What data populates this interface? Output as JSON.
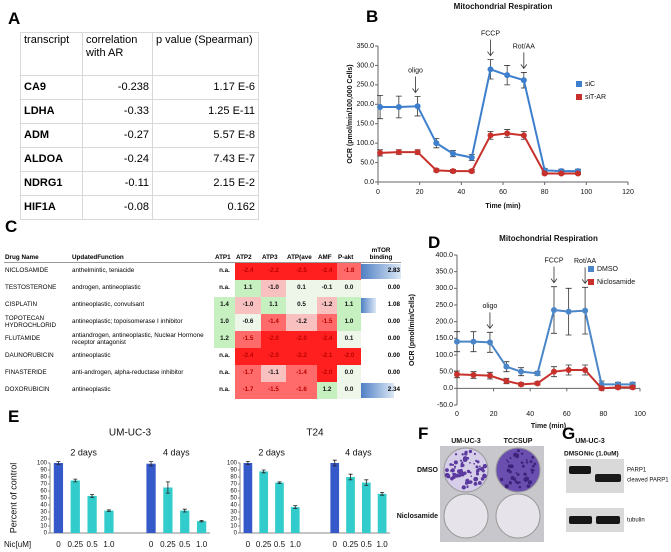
{
  "panel_labels": [
    "A",
    "B",
    "C",
    "D",
    "E",
    "F",
    "G"
  ],
  "table_a": {
    "header": [
      "transcript",
      "correlation with AR",
      "p value (Spearman)"
    ],
    "rows": [
      [
        "CA9",
        -0.238,
        "1.17 E-6"
      ],
      [
        "LDHA",
        -0.33,
        "1.25 E-11"
      ],
      [
        "ADM",
        -0.27,
        "5.57 E-8"
      ],
      [
        "ALDOA",
        -0.24,
        "7.43 E-7"
      ],
      [
        "NDRG1",
        -0.11,
        "2.15 E-2"
      ],
      [
        "HIF1A",
        -0.08,
        0.162
      ]
    ]
  },
  "table_c": {
    "header": [
      "Drug Name",
      "UpdatedFunction",
      "ATP1",
      "ATP2",
      "ATP3",
      "ATP(ave",
      "AMF",
      "P-akt",
      "mTOR binding"
    ],
    "rows": [
      [
        "NICLOSAMIDE",
        "anthelmintic, teniacide",
        "n.a.",
        "-2.4",
        "-2.2",
        "-2.5",
        "-2.4",
        "-1.8",
        "2.83"
      ],
      [
        "TESTOSTERONE",
        "androgen, antineoplastic",
        "n.a.",
        "1.1",
        "-1.0",
        "0.1",
        "-0.1",
        "0.0",
        "0.00"
      ],
      [
        "CISPLATIN",
        "antineoplastic, convulsant",
        "1.4",
        "-1.0",
        "1.1",
        "0.5",
        "-1.2",
        "1.1",
        "1.08"
      ],
      [
        "TOPOTECAN HYDROCHLORID",
        "antineoplastic; topoisomerase I inhibitor",
        "1.0",
        "-0.6",
        "-1.4",
        "-1.2",
        "-1.5",
        "1.0",
        "0.00"
      ],
      [
        "FLUTAMIDE",
        "antiandrogen, antineoplastic, Nuclear Hormone receptor antagonist",
        "1.2",
        "-1.5",
        "-2.0",
        "-2.0",
        "-2.4",
        "0.1",
        "0.00"
      ],
      [
        "DAUNORUBICIN",
        "antineoplastic",
        "n.a.",
        "-2.4",
        "-2.0",
        "-2.2",
        "-2.1",
        "-2.0",
        "0.00"
      ],
      [
        "FINASTERIDE",
        "anti-androgen, alpha-reductase inhibitor",
        "n.a.",
        "-1.7",
        "-1.1",
        "-1.4",
        "-2.0",
        "0.0",
        "0.00"
      ],
      [
        "DOXORUBICIN",
        "antineoplastic",
        "n.a.",
        "-1.7",
        "-1.5",
        "-1.6",
        "1.2",
        "0.0",
        "2.34"
      ]
    ]
  },
  "chart_data": [
    {
      "type": "line",
      "title": "Mitochondrial Respiration",
      "x_label": "Time (min)",
      "y_label": "OCR (pmol/min/100,000 Cells)",
      "x": [
        1,
        10,
        19,
        28,
        36,
        45,
        54,
        62,
        70,
        80,
        88,
        96
      ],
      "series": [
        {
          "name": "siC",
          "color": "#3d7fcc",
          "values": [
            193,
            193,
            195,
            100,
            73,
            63,
            290,
            275,
            262,
            30,
            28,
            28
          ],
          "errors": [
            30,
            28,
            25,
            12,
            8,
            8,
            25,
            25,
            20,
            5,
            5,
            5
          ]
        },
        {
          "name": "siT-AR",
          "color": "#c8312b",
          "values": [
            75,
            77,
            77,
            30,
            28,
            28,
            120,
            125,
            120,
            22,
            22,
            22
          ],
          "errors": [
            8,
            6,
            6,
            4,
            4,
            4,
            10,
            10,
            10,
            3,
            3,
            3
          ]
        }
      ],
      "annotations": [
        {
          "text": "oligo",
          "x": 18
        },
        {
          "text": "FCCP",
          "x": 54
        },
        {
          "text": "Rot/AA",
          "x": 70
        }
      ],
      "xlim": [
        0,
        120
      ],
      "xticks": [
        0,
        20,
        40,
        60,
        80,
        100,
        120
      ],
      "ylim": [
        0,
        350
      ],
      "yticks": [
        {
          "value": 0,
          "label": "0.0"
        },
        {
          "value": 50,
          "label": "50.0"
        },
        {
          "value": 100,
          "label": "100.0"
        },
        {
          "value": 150,
          "label": "150.0"
        },
        {
          "value": 200,
          "label": "200.0"
        },
        {
          "value": 250,
          "label": "250.0"
        },
        {
          "value": 300,
          "label": "300.0"
        },
        {
          "value": 350,
          "label": "350.0"
        }
      ],
      "legend": "center right"
    },
    {
      "type": "line",
      "title": "Mitochondrial Respiration",
      "x_label": "Time (min)",
      "y_label": "OCR (pmol/min/Cells)",
      "x": [
        0,
        9,
        18,
        27,
        35,
        44,
        53,
        61,
        70,
        79,
        88,
        96
      ],
      "series": [
        {
          "name": "DMSO",
          "color": "#4a86c8",
          "values": [
            140,
            140,
            138,
            65,
            50,
            45,
            235,
            230,
            233,
            12,
            12,
            12
          ],
          "errors": [
            30,
            30,
            30,
            15,
            12,
            6,
            70,
            70,
            70,
            10,
            6,
            6
          ]
        },
        {
          "name": "Niclosamide",
          "color": "#c8312b",
          "values": [
            42,
            40,
            38,
            22,
            12,
            15,
            50,
            55,
            55,
            0,
            3,
            3
          ],
          "errors": [
            10,
            10,
            10,
            8,
            5,
            5,
            15,
            15,
            15,
            5,
            5,
            5
          ]
        }
      ],
      "annotations": [
        {
          "text": "oligo",
          "x": 18
        },
        {
          "text": "FCCP",
          "x": 53
        },
        {
          "text": "Rot/AA",
          "x": 70
        }
      ],
      "xlim": [
        0,
        100
      ],
      "xticks": [
        0,
        20,
        40,
        60,
        80,
        100
      ],
      "ylim": [
        -50,
        400
      ],
      "yticks": [
        {
          "value": -50,
          "label": "-50.0"
        },
        {
          "value": 0,
          "label": "0.0"
        },
        {
          "value": 50,
          "label": "50.0"
        },
        {
          "value": 100,
          "label": "100.0"
        },
        {
          "value": 150,
          "label": "150.0"
        },
        {
          "value": 200,
          "label": "200.0"
        },
        {
          "value": 250,
          "label": "250.0"
        },
        {
          "value": 300,
          "label": "300.0"
        },
        {
          "value": 350,
          "label": "350.0"
        },
        {
          "value": 400,
          "label": "400.0"
        }
      ],
      "legend": "upper right"
    },
    {
      "type": "bar",
      "title": "UM-UC-3",
      "y_label": "Percent of control",
      "x_label": "Nic[uM]",
      "groups": [
        "2 days",
        "4 days"
      ],
      "categories": [
        "0",
        "0.25",
        "0.5",
        "1.0",
        "0",
        "0.25",
        "0.5",
        "1.0"
      ],
      "values": [
        100,
        75,
        53,
        32,
        99,
        65,
        32,
        17
      ],
      "errors": [
        2,
        2,
        2,
        1,
        3,
        8,
        2,
        1
      ],
      "colors": [
        "#3559c9",
        "#33cccc",
        "#33cccc",
        "#33cccc",
        "#3559c9",
        "#33cccc",
        "#33cccc",
        "#33cccc"
      ],
      "ylim": [
        0,
        100
      ],
      "yticks": [
        0,
        10,
        20,
        30,
        40,
        50,
        60,
        70,
        80,
        90,
        100
      ]
    },
    {
      "type": "bar",
      "title": "T24",
      "groups": [
        "2 days",
        "4 days"
      ],
      "categories": [
        "0",
        "0.25",
        "0.5",
        "1.0",
        "0",
        "0.25",
        "0.5",
        "1.0"
      ],
      "values": [
        100,
        88,
        72,
        37,
        100,
        80,
        72,
        56
      ],
      "errors": [
        2,
        2,
        1,
        2,
        4,
        4,
        4,
        2
      ],
      "colors": [
        "#3559c9",
        "#33cccc",
        "#33cccc",
        "#33cccc",
        "#3559c9",
        "#33cccc",
        "#33cccc",
        "#33cccc"
      ],
      "ylim": [
        0,
        100
      ],
      "yticks": [
        0,
        10,
        20,
        30,
        40,
        50,
        60,
        70,
        80,
        90,
        100
      ]
    }
  ],
  "panel_f": {
    "columns": [
      "UM-UC-3",
      "TCCSUP"
    ],
    "rows": [
      "DMSO",
      "Niclosamide"
    ]
  },
  "panel_g": {
    "title": "UM-UC-3",
    "lanes": [
      "DMSO",
      "Nic (1.0uM)"
    ],
    "bands": [
      "PARP1",
      "cleaved PARP1",
      "tubulin"
    ]
  }
}
